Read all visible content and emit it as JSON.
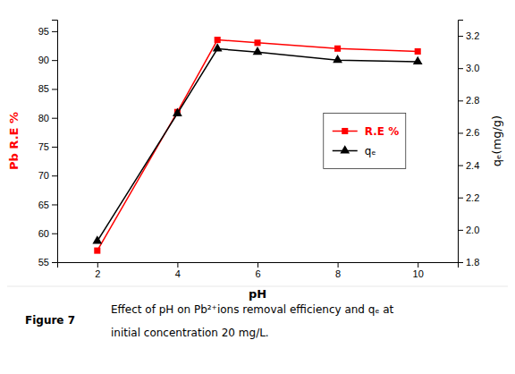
{
  "chart_data": {
    "type": "line",
    "x_label": "pH",
    "y_label": "Pb R.E %",
    "y2_label": "qₑ(mg/g)",
    "x": [
      2,
      4,
      5,
      6,
      8,
      10
    ],
    "xlim": [
      1,
      11
    ],
    "xticks": [
      2,
      4,
      6,
      8,
      10
    ],
    "ylim": [
      55,
      97
    ],
    "yticks": [
      55,
      60,
      65,
      70,
      75,
      80,
      85,
      90,
      95
    ],
    "y2lim": [
      1.8,
      3.3
    ],
    "y2ticks": [
      1.8,
      {
        "value": 2.0,
        "label": "2.0"
      },
      2.2,
      2.4,
      2.6,
      2.8,
      {
        "value": 3.0,
        "label": "3.0"
      },
      3.2
    ],
    "series": [
      {
        "name": "R.E %",
        "color": "red",
        "marker": "square",
        "values": [
          57.0,
          81.0,
          93.5,
          93.0,
          92.0,
          91.5
        ]
      },
      {
        "name": "qₑ",
        "color": "black",
        "marker": "triangle",
        "axis": "y2",
        "values": [
          1.93,
          2.72,
          3.12,
          3.1,
          3.05,
          3.04
        ]
      }
    ],
    "grid": false,
    "legend": "right",
    "annotations": [
      "Figure 7",
      "Effect of pH on Pb²⁺ions removal efficiency and qₑ at",
      "initial concentration 20 mg/L."
    ]
  }
}
